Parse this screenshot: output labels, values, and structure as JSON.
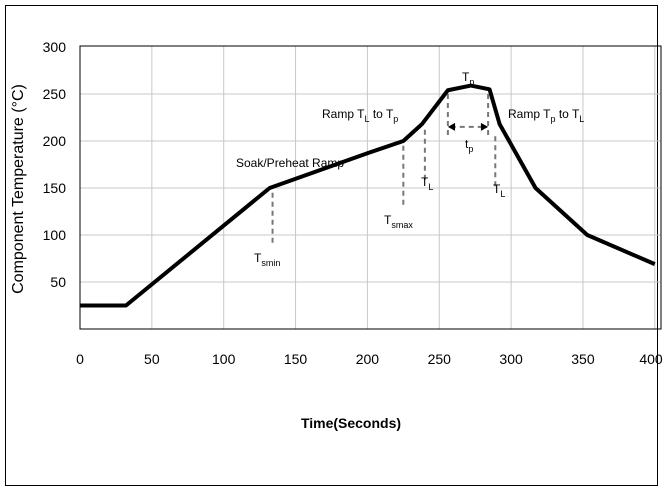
{
  "chart_data": {
    "type": "line",
    "title": "",
    "xlabel": "Time(Seconds)",
    "ylabel": "Component Temperature (°C)",
    "xlim": [
      0,
      400
    ],
    "ylim": [
      0,
      300
    ],
    "x_ticks": [
      0,
      50,
      100,
      150,
      200,
      250,
      300,
      350,
      400
    ],
    "y_ticks": [
      50,
      100,
      150,
      200,
      250,
      300
    ],
    "grid": true,
    "series": [
      {
        "x": [
          0,
          32,
          132,
          200,
          225,
          238,
          256,
          272,
          285,
          292,
          317,
          353,
          400
        ],
        "y": [
          25,
          25,
          150,
          187,
          200,
          218,
          254,
          259,
          255,
          218,
          150,
          100,
          69
        ]
      }
    ],
    "annotations": {
      "soak": "Soak/Preheat Ramp",
      "tsmin": {
        "main": "T",
        "sub": "smin"
      },
      "tsmax": {
        "main": "T",
        "sub": "smax"
      },
      "tl_rise": {
        "main": "T",
        "sub": "L"
      },
      "tl_fall": {
        "main": "T",
        "sub": "L"
      },
      "ramp_up": {
        "prefix": "Ramp T",
        "sub1": "L",
        "mid": " to T",
        "sub2": "p"
      },
      "ramp_down": {
        "prefix": "Ramp T",
        "sub1": "p",
        "mid": " to T",
        "sub2": "L"
      },
      "tp": {
        "main": "T",
        "sub": "p"
      },
      "tp_dur": {
        "main": "t",
        "sub": "p"
      }
    }
  }
}
